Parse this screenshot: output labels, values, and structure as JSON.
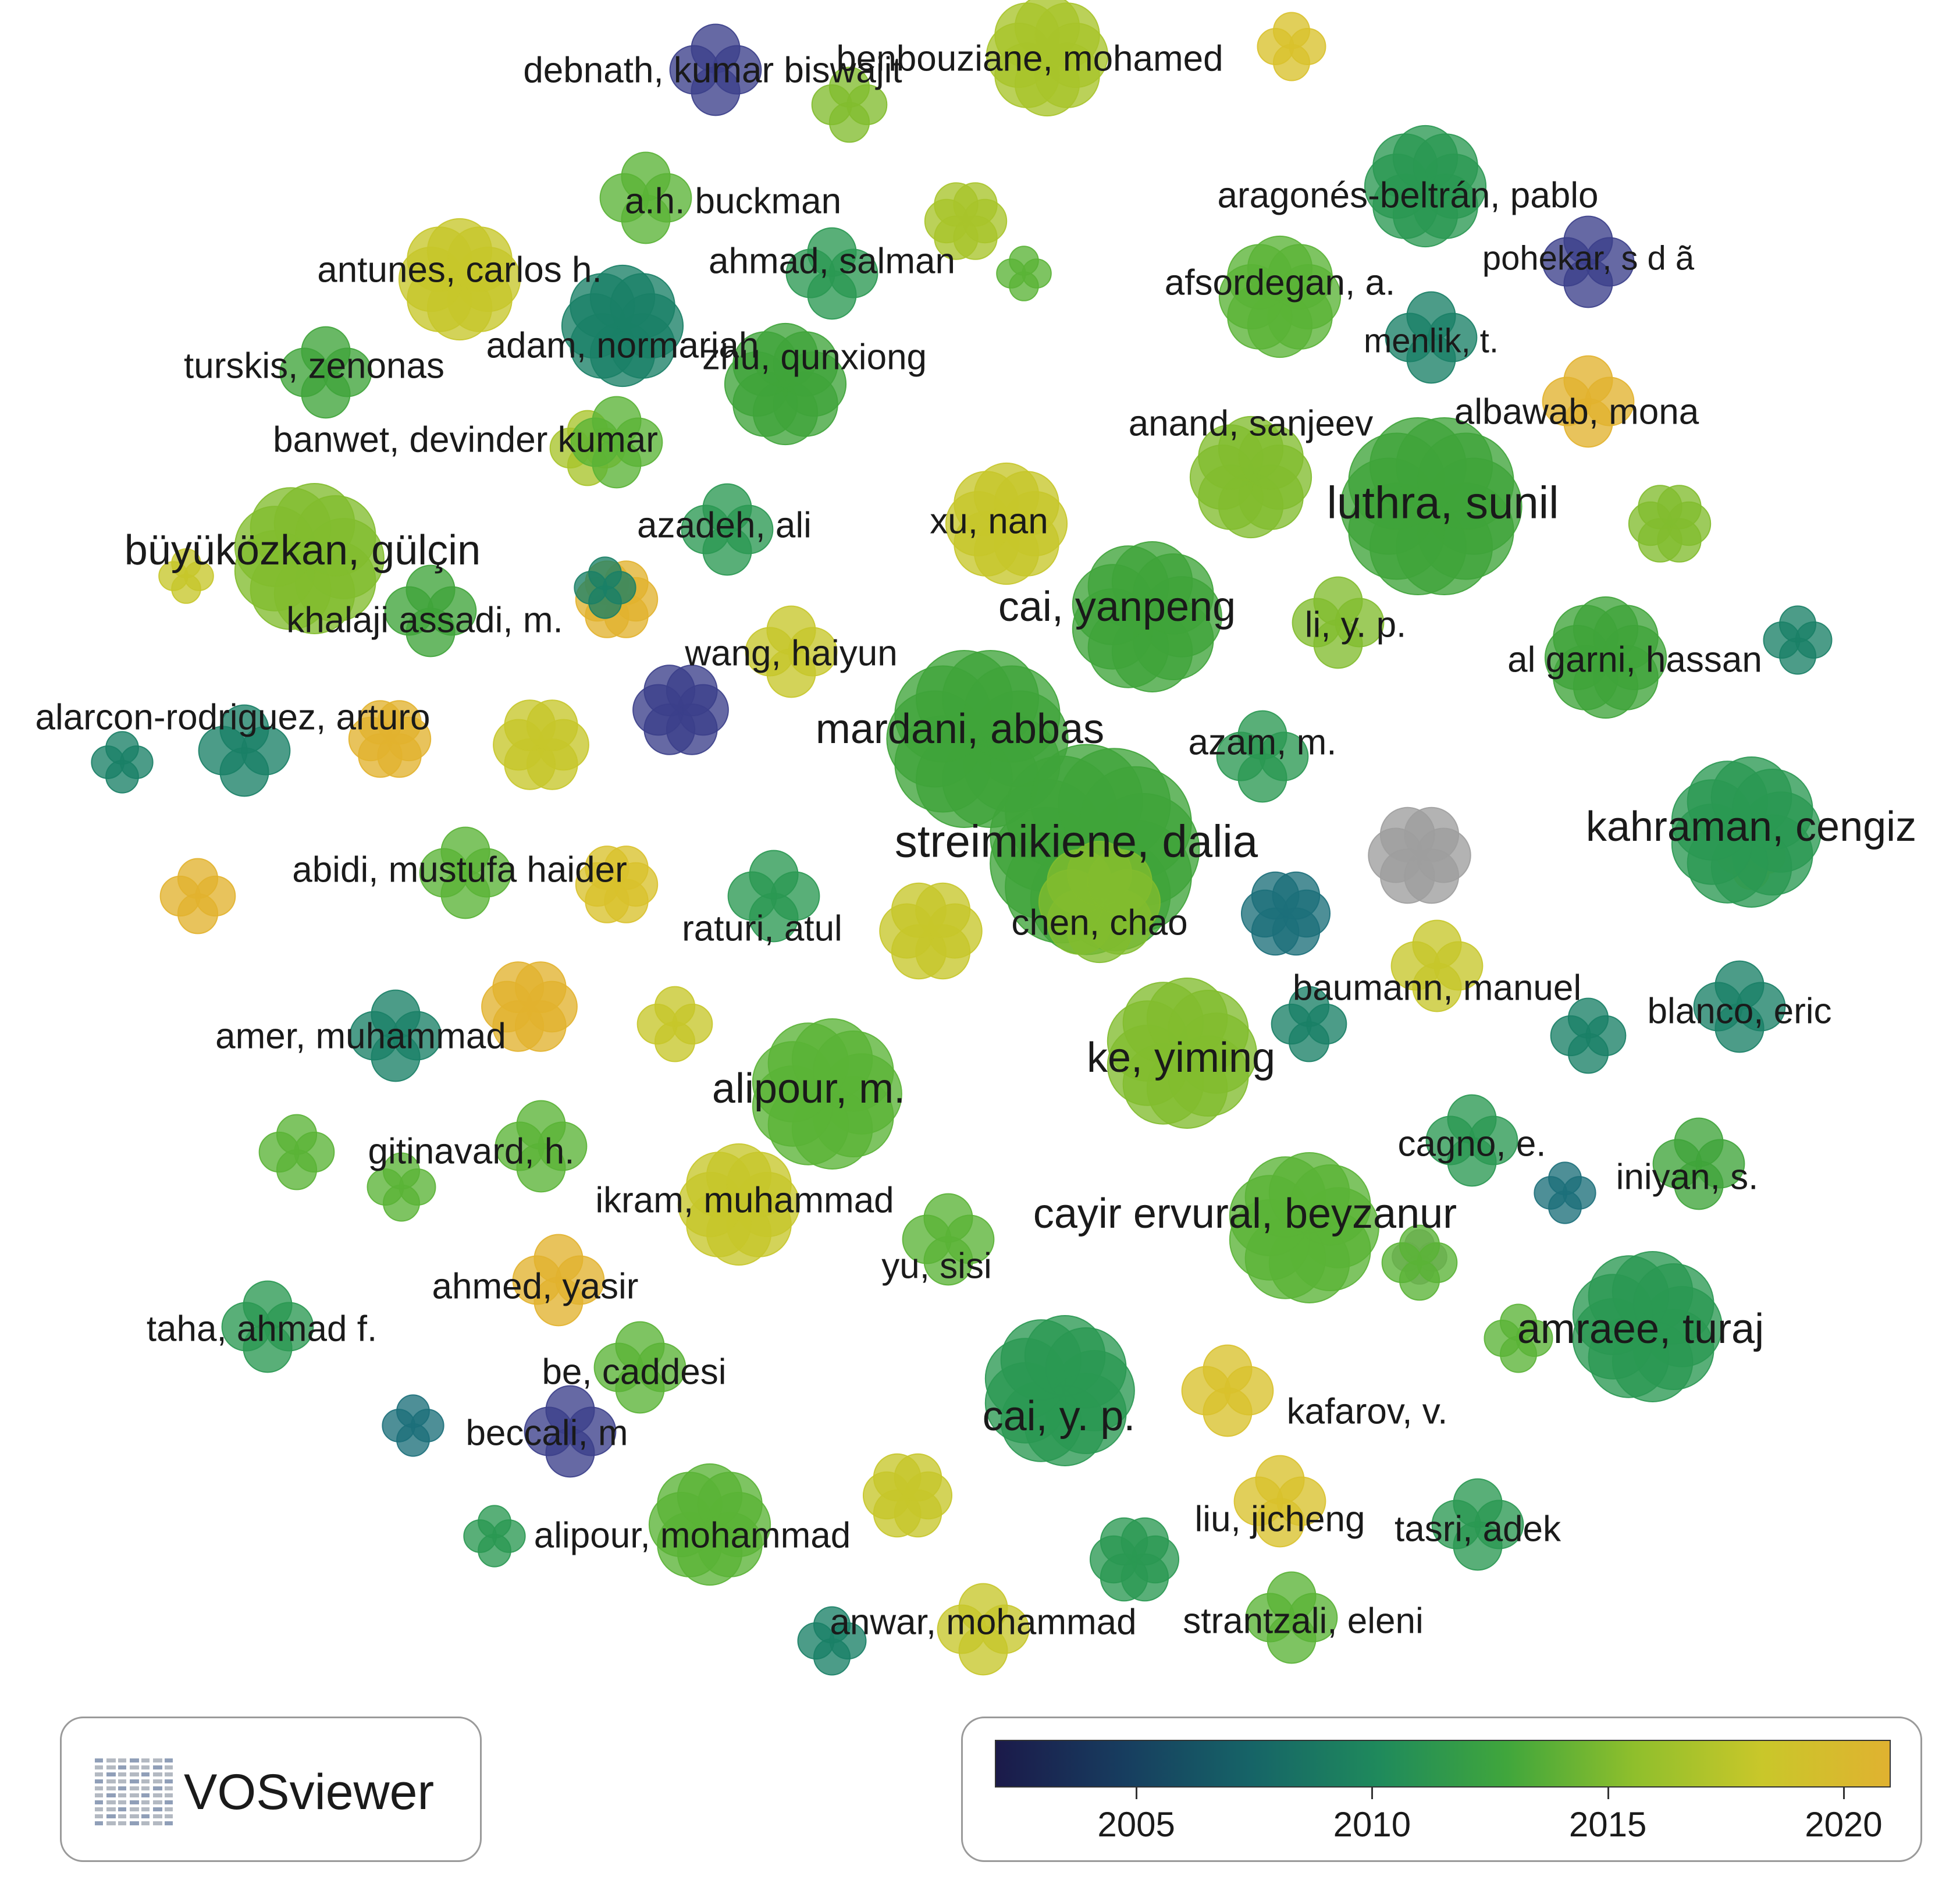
{
  "colors": {
    "c02": "#3b3f8a",
    "c07": "#1c6f7a",
    "c10": "#1a8066",
    "c12": "#2a9852",
    "c14": "#3fa43a",
    "c15": "#5ab336",
    "c16": "#82bd2e",
    "c17": "#a8c42a",
    "c18": "#c7c62a",
    "c19": "#d9c12c",
    "c20": "#e2b22e",
    "grey": "#9e9e9e"
  },
  "nodes": [
    {
      "label": "debnath, kumar biswajit",
      "color": "c02",
      "weight": 1
    },
    {
      "label": "benbouziane, mohamed",
      "color": "c17",
      "weight": 2
    },
    {
      "label": "a.h. buckman",
      "color": "c15",
      "weight": 1
    },
    {
      "label": "aragonés-beltrán, pablo",
      "color": "c12",
      "weight": 2
    },
    {
      "label": "antunes, carlos h.",
      "color": "c18",
      "weight": 2
    },
    {
      "label": "ahmad, salman",
      "color": "c12",
      "weight": 1
    },
    {
      "label": "pohekar, s d ã",
      "color": "c02",
      "weight": 1
    },
    {
      "label": "afsordegan, a.",
      "color": "c15",
      "weight": 2
    },
    {
      "label": "adam, normariah",
      "color": "c10",
      "weight": 2
    },
    {
      "label": "menlik, t.",
      "color": "c10",
      "weight": 1
    },
    {
      "label": "turskis, zenonas",
      "color": "c14",
      "weight": 1
    },
    {
      "label": "zhu, qunxiong",
      "color": "c14",
      "weight": 2
    },
    {
      "label": "albawab, mona",
      "color": "c20",
      "weight": 1
    },
    {
      "label": "anand, sanjeev",
      "color": "c16",
      "weight": 2
    },
    {
      "label": "banwet, devinder kumar",
      "color": "c15",
      "weight": 1
    },
    {
      "label": "luthra, sunil",
      "color": "c14",
      "weight": 4
    },
    {
      "label": "azadeh, ali",
      "color": "c12",
      "weight": 1
    },
    {
      "label": "xu, nan",
      "color": "c18",
      "weight": 2
    },
    {
      "label": "büyüközkan, gülçin",
      "color": "c16",
      "weight": 3
    },
    {
      "label": "khalaji assadi, m.",
      "color": "c14",
      "weight": 1
    },
    {
      "label": "cai, yanpeng",
      "color": "c14",
      "weight": 3
    },
    {
      "label": "li, y. p.",
      "color": "c16",
      "weight": 1
    },
    {
      "label": "al garni, hassan",
      "color": "c14",
      "weight": 2
    },
    {
      "label": "wang, haiyun",
      "color": "c18",
      "weight": 1
    },
    {
      "label": "alarcon-rodriguez, arturo",
      "color": "c10",
      "weight": 1
    },
    {
      "label": "mardani, abbas",
      "color": "c14",
      "weight": 4
    },
    {
      "label": "azam, m.",
      "color": "c12",
      "weight": 1
    },
    {
      "label": "streimikiene, dalia",
      "color": "c14",
      "weight": 5
    },
    {
      "label": "kahraman, cengiz",
      "color": "c12",
      "weight": 3
    },
    {
      "label": "abidi, mustufa haider",
      "color": "c15",
      "weight": 1
    },
    {
      "label": "raturi, atul",
      "color": "c12",
      "weight": 1
    },
    {
      "label": "chen, chao",
      "color": "c16",
      "weight": 2
    },
    {
      "label": "baumann, manuel",
      "color": "c18",
      "weight": 1
    },
    {
      "label": "blanco, eric",
      "color": "c10",
      "weight": 1
    },
    {
      "label": "amer, muhammad",
      "color": "c10",
      "weight": 1
    },
    {
      "label": "ke, yiming",
      "color": "c16",
      "weight": 3
    },
    {
      "label": "alipour, m.",
      "color": "c15",
      "weight": 3
    },
    {
      "label": "gitinavard, h.",
      "color": "c15",
      "weight": 1
    },
    {
      "label": "cagno, e.",
      "color": "c12",
      "weight": 1
    },
    {
      "label": "iniyan, s.",
      "color": "c14",
      "weight": 1
    },
    {
      "label": "ikram, muhammad",
      "color": "c18",
      "weight": 2
    },
    {
      "label": "cayir ervural, beyzanur",
      "color": "c15",
      "weight": 3
    },
    {
      "label": "yu, sisi",
      "color": "c15",
      "weight": 1
    },
    {
      "label": "ahmed, yasir",
      "color": "c20",
      "weight": 1
    },
    {
      "label": "taha, ahmad f.",
      "color": "c12",
      "weight": 1
    },
    {
      "label": "amraee, turaj",
      "color": "c12",
      "weight": 3
    },
    {
      "label": "be, caddesi",
      "color": "c15",
      "weight": 1
    },
    {
      "label": "beccali, m",
      "color": "c02",
      "weight": 1
    },
    {
      "label": "cai, y. p.",
      "color": "c12",
      "weight": 3
    },
    {
      "label": "kafarov, v.",
      "color": "c19",
      "weight": 1
    },
    {
      "label": "liu, jicheng",
      "color": "c19",
      "weight": 1
    },
    {
      "label": "tasri, adek",
      "color": "c12",
      "weight": 1
    },
    {
      "label": "alipour, mohammad",
      "color": "c15",
      "weight": 2
    },
    {
      "label": "anwar, mohammad",
      "color": "c18",
      "weight": 1
    },
    {
      "label": "strantzali, eleni",
      "color": "c15",
      "weight": 1
    }
  ],
  "logo": {
    "text": "VOSviewer"
  },
  "color_scale": {
    "min": 2002,
    "max": 2021,
    "ticks": [
      {
        "value": 2005,
        "label": "2005"
      },
      {
        "value": 2010,
        "label": "2010"
      },
      {
        "value": 2015,
        "label": "2015"
      },
      {
        "value": 2020,
        "label": "2020"
      }
    ],
    "gradient": [
      "#1b1a4a",
      "#173d5f",
      "#166467",
      "#1f8a5c",
      "#40a63c",
      "#8fbf2c",
      "#c9c72a",
      "#e0b230"
    ]
  }
}
